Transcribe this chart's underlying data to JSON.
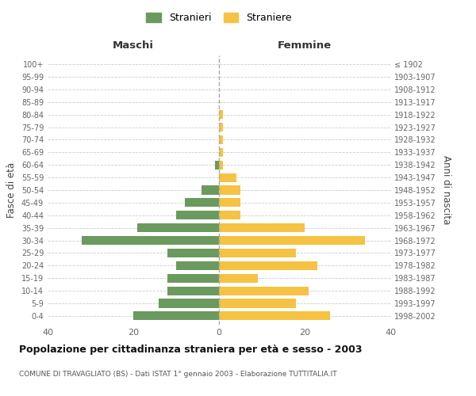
{
  "age_groups": [
    "0-4",
    "5-9",
    "10-14",
    "15-19",
    "20-24",
    "25-29",
    "30-34",
    "35-39",
    "40-44",
    "45-49",
    "50-54",
    "55-59",
    "60-64",
    "65-69",
    "70-74",
    "75-79",
    "80-84",
    "85-89",
    "90-94",
    "95-99",
    "100+"
  ],
  "birth_years": [
    "1998-2002",
    "1993-1997",
    "1988-1992",
    "1983-1987",
    "1978-1982",
    "1973-1977",
    "1968-1972",
    "1963-1967",
    "1958-1962",
    "1953-1957",
    "1948-1952",
    "1943-1947",
    "1938-1942",
    "1933-1937",
    "1928-1932",
    "1923-1927",
    "1918-1922",
    "1913-1917",
    "1908-1912",
    "1903-1907",
    "≤ 1902"
  ],
  "maschi": [
    20,
    14,
    12,
    12,
    10,
    12,
    32,
    19,
    10,
    8,
    4,
    0,
    1,
    0,
    0,
    0,
    0,
    0,
    0,
    0,
    0
  ],
  "femmine": [
    26,
    18,
    21,
    9,
    23,
    18,
    34,
    20,
    5,
    5,
    5,
    4,
    1,
    1,
    1,
    1,
    1,
    0,
    0,
    0,
    0
  ],
  "color_maschi": "#6b9a5e",
  "color_femmine": "#f5c242",
  "title": "Popolazione per cittadinanza straniera per età e sesso - 2003",
  "subtitle": "COMUNE DI TRAVAGLIATO (BS) - Dati ISTAT 1° gennaio 2003 - Elaborazione TUTTITALIA.IT",
  "xlabel_left": "Maschi",
  "xlabel_right": "Femmine",
  "ylabel_left": "Fasce di età",
  "ylabel_right": "Anni di nascita",
  "legend_stranieri": "Stranieri",
  "legend_straniere": "Straniere",
  "xlim": 40,
  "background_color": "#ffffff",
  "grid_color": "#cccccc"
}
